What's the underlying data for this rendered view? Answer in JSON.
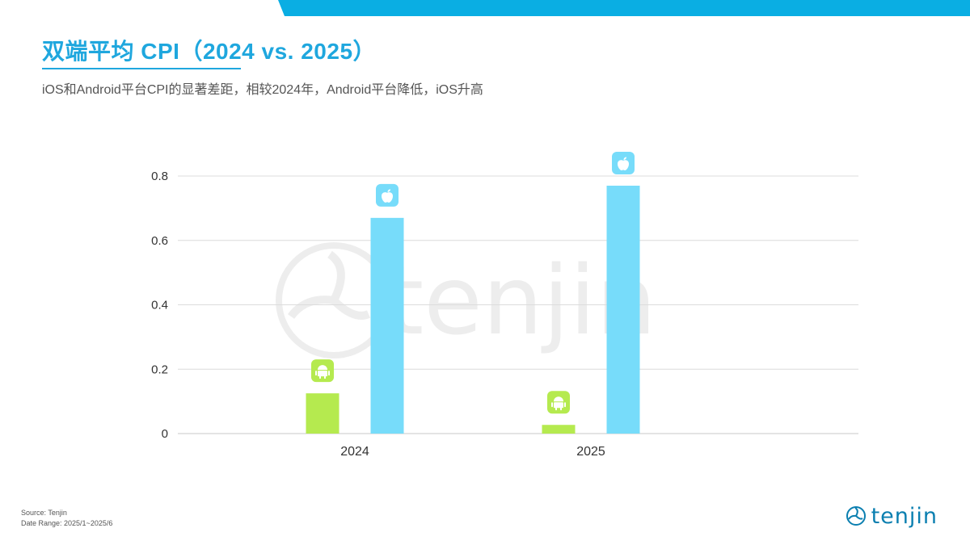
{
  "header": {
    "title": "双端平均 CPI（2024 vs. 2025）",
    "subtitle": "iOS和Android平台CPI的显著差距，相较2024年，Android平台降低，iOS升高"
  },
  "colors": {
    "accent": "#0aaee3",
    "android": "#b5ea4f",
    "ios": "#77dcfa"
  },
  "chart_data": {
    "type": "bar",
    "categories": [
      "2024",
      "2025"
    ],
    "series": [
      {
        "platform_icon": "android-icon",
        "values": [
          0.125,
          0.027
        ]
      },
      {
        "platform_icon": "apple-icon",
        "values": [
          0.67,
          0.77
        ]
      }
    ],
    "ylim": [
      0,
      0.8
    ],
    "yticks": [
      "0",
      "0.2",
      "0.4",
      "0.6",
      "0.8"
    ],
    "grid": true
  },
  "footer": {
    "source": "Source: Tenjin",
    "date_range": "Date Range: 2025/1~2025/6",
    "brand": "tenjin",
    "watermark": "tenjin"
  }
}
